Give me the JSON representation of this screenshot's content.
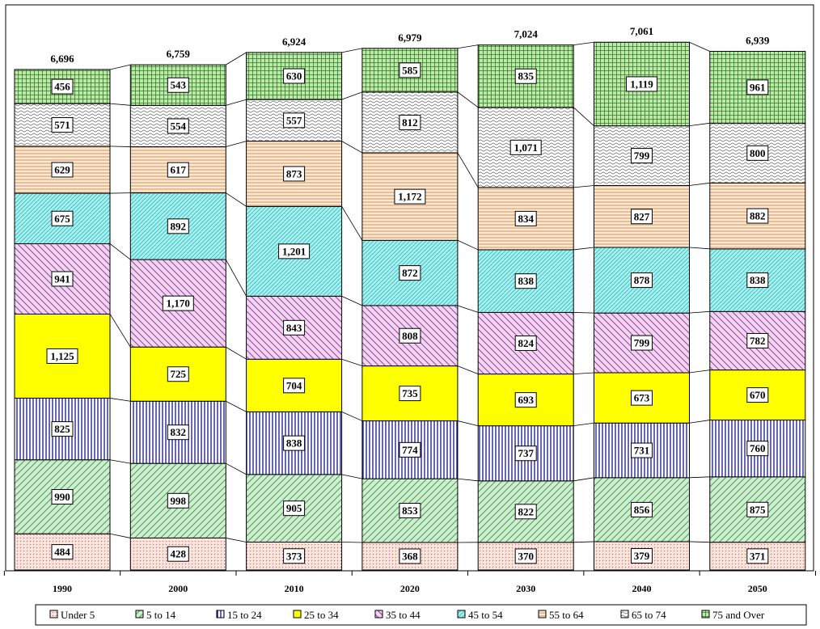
{
  "chart_data": {
    "type": "bar",
    "stacked": true,
    "categories": [
      "1990",
      "2000",
      "2010",
      "2020",
      "2030",
      "2040",
      "2050"
    ],
    "totals": [
      "6,696",
      "6,759",
      "6,924",
      "6,979",
      "7,024",
      "7,061",
      "6,939"
    ],
    "series": [
      {
        "name": "Under 5",
        "values": [
          484,
          428,
          373,
          368,
          370,
          379,
          371
        ],
        "color": "#fbe3dc",
        "pattern": "dots"
      },
      {
        "name": "5 to 14",
        "values": [
          990,
          998,
          905,
          853,
          822,
          856,
          875
        ],
        "color": "#cdeed0",
        "pattern": "diag-up"
      },
      {
        "name": "15 to 24",
        "values": [
          825,
          832,
          838,
          774,
          737,
          731,
          760
        ],
        "color": "#ffffff",
        "pattern": "vertical-navy"
      },
      {
        "name": "25 to 34",
        "values": [
          1125,
          725,
          704,
          735,
          693,
          673,
          670
        ],
        "color": "#ffff00",
        "pattern": "solid"
      },
      {
        "name": "35 to 44",
        "values": [
          941,
          1170,
          843,
          808,
          824,
          799,
          782
        ],
        "color": "#f3d3f3",
        "pattern": "diag-down"
      },
      {
        "name": "45 to 54",
        "values": [
          675,
          892,
          1201,
          872,
          838,
          878,
          838
        ],
        "color": "#9ff3f3",
        "pattern": "diag-up-fine"
      },
      {
        "name": "55 to 64",
        "values": [
          629,
          617,
          873,
          1172,
          834,
          827,
          882
        ],
        "color": "#fde9d4",
        "pattern": "horizontal"
      },
      {
        "name": "65 to 74",
        "values": [
          571,
          554,
          557,
          812,
          1071,
          799,
          800
        ],
        "color": "#ffffff",
        "pattern": "wave"
      },
      {
        "name": "75 and Over",
        "values": [
          456,
          543,
          630,
          585,
          835,
          1119,
          961
        ],
        "color": "#bfe8a6",
        "pattern": "grid"
      }
    ],
    "legend": "bottom",
    "grid": false
  }
}
